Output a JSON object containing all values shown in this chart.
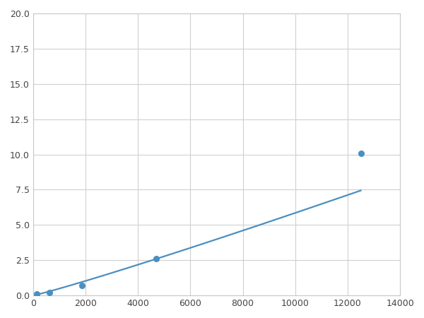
{
  "x_data": [
    156,
    625,
    1875,
    4688,
    12500
  ],
  "y_data": [
    0.1,
    0.2,
    0.7,
    2.6,
    10.1
  ],
  "line_color": "#4a8fc0",
  "marker_color": "#4a8fc0",
  "marker_size": 5.5,
  "line_width": 1.6,
  "xlim": [
    0,
    14000
  ],
  "ylim": [
    0,
    20
  ],
  "xticks": [
    0,
    2000,
    4000,
    6000,
    8000,
    10000,
    12000,
    14000
  ],
  "yticks": [
    0.0,
    2.5,
    5.0,
    7.5,
    10.0,
    12.5,
    15.0,
    17.5,
    20.0
  ],
  "background_color": "#ffffff",
  "grid_color": "#d0d0d0"
}
